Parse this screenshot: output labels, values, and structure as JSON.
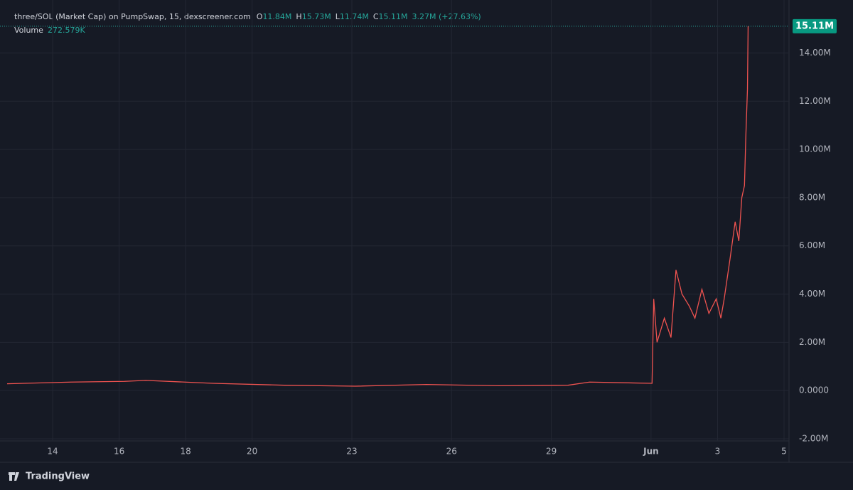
{
  "chart_data": {
    "type": "line",
    "title": "three/SOL (Market Cap) on PumpSwap, 15, dexscreener.com",
    "ohlc": [
      {
        "label": "O",
        "value": "11.84M"
      },
      {
        "label": "H",
        "value": "15.73M"
      },
      {
        "label": "L",
        "value": "11.74M"
      },
      {
        "label": "C",
        "value": "15.11M"
      }
    ],
    "change": "3.27M (+27.63%)",
    "volume_label": "Volume",
    "volume_value": "272.579K",
    "last_price": {
      "value": 15110000,
      "label": "15.11M"
    },
    "brand": "TradingView",
    "xlim": [
      12.63,
      36.3
    ],
    "ylim": [
      -2090000,
      15960000
    ],
    "xticks": [
      14,
      16,
      18,
      20,
      23,
      26,
      29,
      {
        "value": 32,
        "label": "Jun"
      },
      {
        "value": 34,
        "label": "3"
      },
      {
        "value": 36,
        "label": "5"
      }
    ],
    "yticks": [
      {
        "value": -2000000,
        "label": "-2.00M"
      },
      {
        "value": 0,
        "label": "0.0000"
      },
      {
        "value": 2000000,
        "label": "2.00M"
      },
      {
        "value": 4000000,
        "label": "4.00M"
      },
      {
        "value": 6000000,
        "label": "6.00M"
      },
      {
        "value": 8000000,
        "label": "8.00M"
      },
      {
        "value": 10000000,
        "label": "10.00M"
      },
      {
        "value": 12000000,
        "label": "12.00M"
      },
      {
        "value": 14000000,
        "label": "14.00M"
      }
    ],
    "grid": true,
    "series": [
      {
        "color": "#ef5350",
        "x": [
          12.63,
          14.56,
          16.16,
          16.8,
          18.83,
          20.97,
          23.1,
          25.24,
          27.38,
          29.5,
          30.15,
          32.03,
          32.08,
          32.18,
          32.4,
          32.6,
          32.75,
          32.93,
          33.15,
          33.32,
          33.53,
          33.74,
          33.96,
          34.1,
          34.2,
          34.38,
          34.53,
          34.64,
          34.73,
          34.81,
          34.85,
          34.9,
          34.92
        ],
        "values": [
          280000,
          350000,
          380000,
          420000,
          300000,
          220000,
          180000,
          250000,
          200000,
          220000,
          350000,
          300000,
          3800000,
          2000000,
          3000000,
          2200000,
          5000000,
          4000000,
          3500000,
          3000000,
          4200000,
          3200000,
          3800000,
          3000000,
          3800000,
          5500000,
          7000000,
          6200000,
          8000000,
          8500000,
          10500000,
          12500000,
          15110000
        ]
      }
    ]
  }
}
